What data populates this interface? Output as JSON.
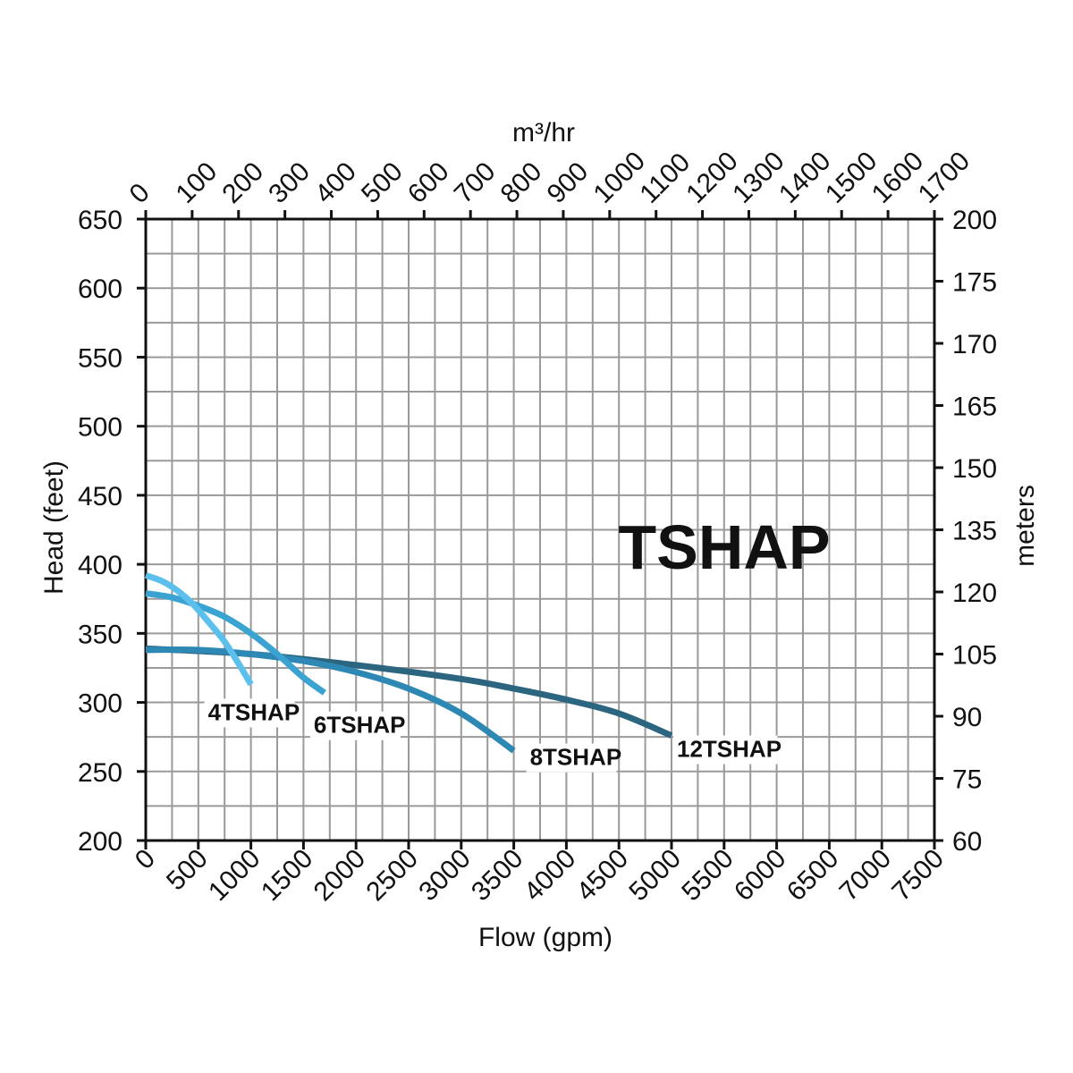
{
  "chart_data": {
    "type": "line",
    "title": "TSHAP",
    "xlabel": "Flow (gpm)",
    "ylabel": "Head (feet)",
    "x2label": "m³/hr",
    "y2label": "meters",
    "xlim": [
      0,
      7500
    ],
    "ylim": [
      200,
      650
    ],
    "x_ticks": [
      "0",
      "500",
      "1000",
      "1500",
      "2000",
      "2500",
      "3000",
      "3500",
      "4000",
      "4500",
      "5000",
      "5500",
      "6000",
      "6500",
      "7000",
      "7500"
    ],
    "y_ticks": [
      "200",
      "250",
      "300",
      "350",
      "400",
      "450",
      "500",
      "550",
      "600",
      "650"
    ],
    "x2_ticks": [
      "0",
      "100",
      "200",
      "300",
      "400",
      "500",
      "600",
      "700",
      "800",
      "900",
      "1000",
      "1100",
      "1200",
      "1300",
      "1400",
      "1500",
      "1600",
      "1700"
    ],
    "y2_ticks": [
      "60",
      "75",
      "90",
      "105",
      "120",
      "135",
      "150",
      "165",
      "170",
      "175",
      "200"
    ],
    "grid": true,
    "series": [
      {
        "name": "4TSHAP",
        "color": "#5bc0ec",
        "x": [
          0,
          150,
          300,
          450,
          600,
          750,
          900,
          1000
        ],
        "y": [
          392,
          388,
          381,
          371,
          358,
          344,
          326,
          313
        ]
      },
      {
        "name": "6TSHAP",
        "color": "#3aa3d2",
        "x": [
          0,
          250,
          500,
          750,
          1000,
          1250,
          1500,
          1700
        ],
        "y": [
          379,
          376,
          370,
          362,
          350,
          335,
          318,
          307
        ]
      },
      {
        "name": "8TSHAP",
        "color": "#2e88b4",
        "x": [
          0,
          500,
          1000,
          1500,
          2000,
          2500,
          3000,
          3500
        ],
        "y": [
          338,
          338,
          335,
          330,
          322,
          310,
          292,
          265
        ]
      },
      {
        "name": "12TSHAP",
        "color": "#2c6580",
        "x": [
          0,
          1000,
          2000,
          3000,
          3500,
          4000,
          4500,
          5000
        ],
        "y": [
          339,
          335,
          327,
          317,
          310,
          302,
          292,
          276
        ]
      }
    ]
  }
}
